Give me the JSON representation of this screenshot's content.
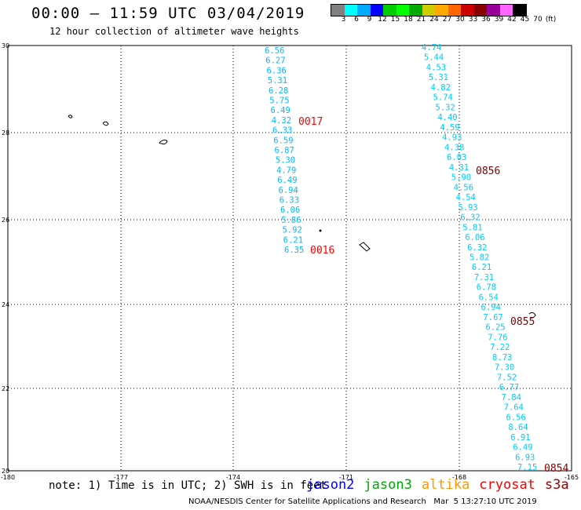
{
  "title": "00:00 – 11:59 UTC 03/04/2019",
  "subtitle": "12 hour collection of altimeter wave heights",
  "colorbar": {
    "colors": [
      "#808080",
      "#00ffff",
      "#00aaff",
      "#0000ff",
      "#00cc00",
      "#00ff00",
      "#00aa00",
      "#cccc00",
      "#ffaa00",
      "#ff6600",
      "#cc0000",
      "#880000",
      "#990099",
      "#ff66ff",
      "#000000"
    ],
    "labels": [
      "3",
      "6",
      "9",
      "12",
      "15",
      "18",
      "21",
      "24",
      "27",
      "30",
      "33",
      "36",
      "39",
      "42",
      "45",
      "70",
      "(ft)"
    ]
  },
  "axes": {
    "x_ticks": [
      "-180",
      "-177",
      "-174",
      "-171",
      "-168",
      "-165"
    ],
    "y_ticks": [
      "30",
      "28",
      "26",
      "24",
      "22",
      "20"
    ]
  },
  "passes": [
    {
      "color": "#00bbff",
      "values": [
        "6.56",
        "6.27",
        "6.36",
        "5.31",
        "6.28",
        "5.75",
        "6.49",
        "4.32",
        "6.33",
        "6.59",
        "6.87",
        "5.30",
        "4.79",
        "6.49",
        "6.94",
        "6.33",
        "6.06",
        "5.86",
        "5.92",
        "6.21",
        "6.35"
      ]
    },
    {
      "color": "#00ccff",
      "values": [
        "4.74",
        "5.44",
        "4.53",
        "5.31",
        "4.82",
        "5.74",
        "5.32",
        "4.40",
        "4.59",
        "4.93",
        "4.38",
        "6.03",
        "4.31",
        "5.90",
        "4.56",
        "4.54",
        "5.93",
        "6.32",
        "5.81",
        "6.06",
        "6.32",
        "5.82",
        "6.21",
        "7.31",
        "6.78",
        "6.54",
        "6.94",
        "7.67",
        "6.25",
        "7.76",
        "7.22",
        "8.73",
        "7.30",
        "7.52",
        "6.77",
        "7.84",
        "7.64",
        "6.56",
        "8.64",
        "6.91",
        "6.49",
        "6.93",
        "7.15"
      ]
    }
  ],
  "time_labels": [
    {
      "text": "0017",
      "color": "#ff0000"
    },
    {
      "text": "0016",
      "color": "#ff0000"
    },
    {
      "text": "0856",
      "color": "#880000"
    },
    {
      "text": "0855",
      "color": "#880000"
    },
    {
      "text": "0854",
      "color": "#880000"
    }
  ],
  "note": "note: 1) Time is in UTC; 2) SWH is in feet",
  "legend": [
    {
      "text": "jason2",
      "color": "#0000ff"
    },
    {
      "text": "jason3",
      "color": "#00aa00"
    },
    {
      "text": "altika",
      "color": "#ff9900"
    },
    {
      "text": "cryosat",
      "color": "#ff0000"
    },
    {
      "text": "s3a",
      "color": "#990000"
    }
  ],
  "credit": "NOAA/NESDIS Center for Satellite Applications and Research   Mar  5 13:27:10 UTC 2019"
}
